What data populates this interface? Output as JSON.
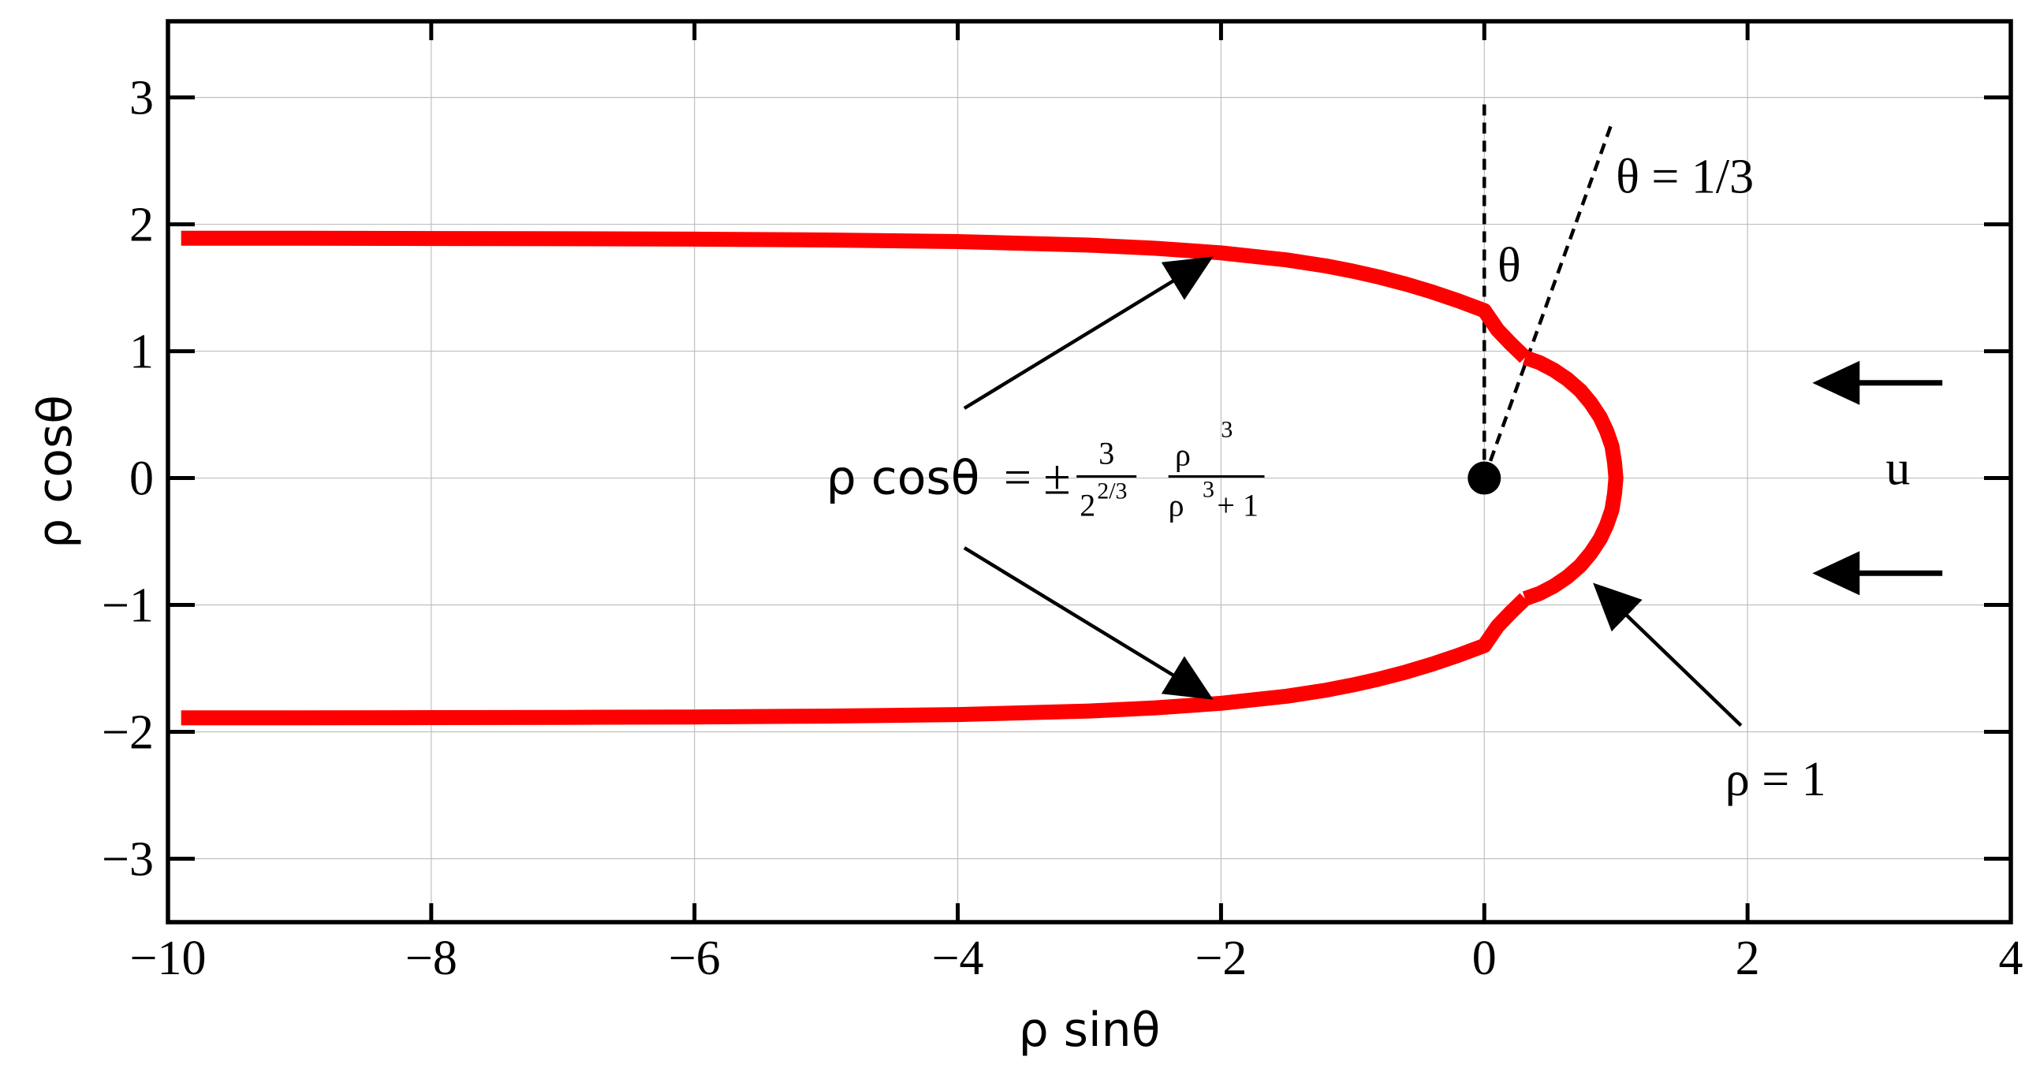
{
  "chart_data": {
    "type": "line",
    "title": "",
    "xlabel": "ρ sinθ",
    "ylabel": "ρ cosθ",
    "xlim": [
      -10,
      4
    ],
    "ylim": [
      -3.5,
      3.6
    ],
    "xticks": [
      -10,
      -8,
      -6,
      -4,
      -2,
      0,
      2,
      4
    ],
    "xtick_labels": [
      "−10",
      "−8",
      "−6",
      "−4",
      "−2",
      "0",
      "2",
      "4"
    ],
    "yticks": [
      -3,
      -2,
      -1,
      0,
      1,
      2,
      3
    ],
    "ytick_labels": [
      "−3",
      "−2",
      "−1",
      "0",
      "1",
      "2",
      "3"
    ],
    "grid": true,
    "series": [
      {
        "color": "#ff0000",
        "x": [
          -9.9,
          -9,
          -8,
          -7,
          -6,
          -5,
          -4,
          -3,
          -2.5,
          -2,
          -1.5,
          -1.2,
          -1,
          -0.8,
          -0.6,
          -0.4,
          -0.2,
          0,
          0.1,
          0.2,
          0.31
        ],
        "y": [
          1.89,
          1.89,
          1.888,
          1.886,
          1.883,
          1.876,
          1.864,
          1.836,
          1.811,
          1.775,
          1.719,
          1.671,
          1.631,
          1.584,
          1.53,
          1.468,
          1.398,
          1.32,
          1.169,
          1.06,
          0.95
        ]
      },
      {
        "color": "#ff0000",
        "x": [
          0.31,
          0.42,
          0.53,
          0.63,
          0.73,
          0.81,
          0.88,
          0.93,
          0.97,
          0.99,
          1.0,
          0.99,
          0.97,
          0.93,
          0.88,
          0.81,
          0.73,
          0.63,
          0.53,
          0.42,
          0.31
        ],
        "y": [
          0.95,
          0.91,
          0.85,
          0.78,
          0.69,
          0.59,
          0.48,
          0.37,
          0.25,
          0.12,
          0,
          -0.12,
          -0.25,
          -0.37,
          -0.48,
          -0.59,
          -0.69,
          -0.78,
          -0.85,
          -0.91,
          -0.95
        ]
      },
      {
        "color": "#ff0000",
        "x": [
          0.31,
          0.2,
          0.1,
          0,
          -0.2,
          -0.4,
          -0.6,
          -0.8,
          -1,
          -1.2,
          -1.5,
          -2,
          -2.5,
          -3,
          -4,
          -5,
          -6,
          -7,
          -8,
          -9,
          -9.9
        ],
        "y": [
          -0.95,
          -1.06,
          -1.169,
          -1.32,
          -1.398,
          -1.468,
          -1.53,
          -1.584,
          -1.631,
          -1.671,
          -1.719,
          -1.775,
          -1.811,
          -1.836,
          -1.864,
          -1.876,
          -1.883,
          -1.886,
          -1.888,
          -1.89,
          -1.89
        ]
      }
    ],
    "annotations": {
      "theta_label": "θ",
      "theta_line_label": "θ = 1/3",
      "rho_label": "ρ = 1",
      "flow_label": "u",
      "equation": {
        "lhs": "ρ cosθ",
        "eq": "= ±",
        "num1": "3",
        "den1_base": "2",
        "den1_exp": "2/3",
        "num2_base": "ρ",
        "num2_exp": "3",
        "den2_base": "ρ",
        "den2_exp": "3",
        "den2_tail": "+ 1"
      }
    },
    "colors": {
      "curve": "#ff0000",
      "axes": "#000000",
      "grid": "#bfbfbf"
    }
  }
}
